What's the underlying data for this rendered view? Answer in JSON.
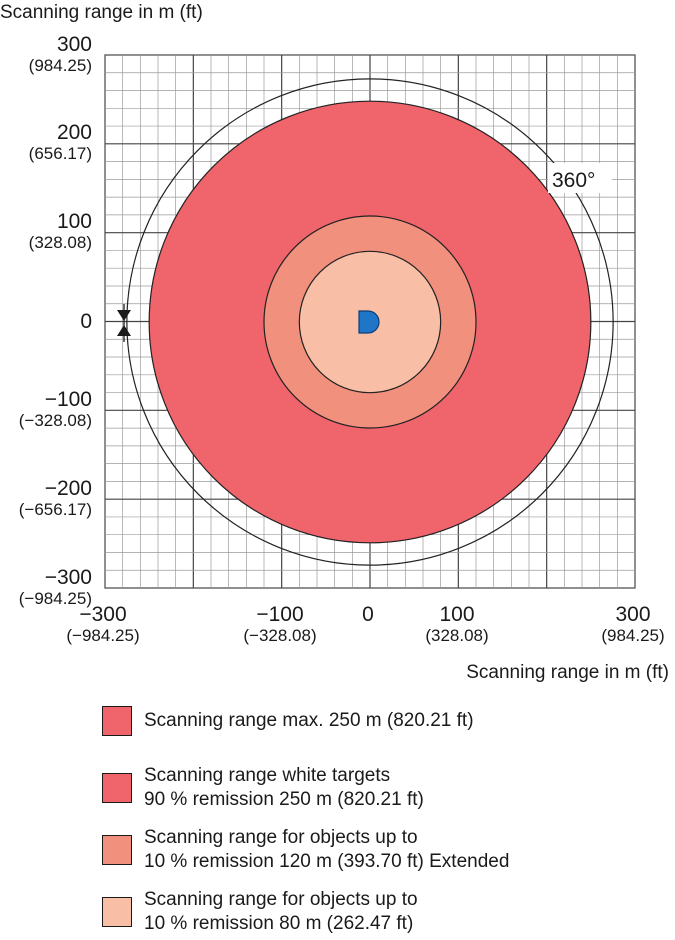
{
  "axes": {
    "y_title": "Scanning range in m (ft)",
    "x_title": "Scanning range in m (ft)",
    "y_ticks": [
      {
        "m": "300",
        "ft": "(984.25)"
      },
      {
        "m": "200",
        "ft": "(656.17)"
      },
      {
        "m": "100",
        "ft": "(328.08)"
      },
      {
        "m": "0",
        "ft": ""
      },
      {
        "m": "−100",
        "ft": "(−328.08)"
      },
      {
        "m": "−200",
        "ft": "(−656.17)"
      },
      {
        "m": "−300",
        "ft": "(−984.25)"
      }
    ],
    "x_ticks": [
      {
        "m": "−300",
        "ft": "(−984.25)"
      },
      {
        "m": "−100",
        "ft": "(−328.08)"
      },
      {
        "m": "0",
        "ft": ""
      },
      {
        "m": "100",
        "ft": "(328.08)"
      },
      {
        "m": "300",
        "ft": "(984.25)"
      }
    ],
    "range": [
      -300,
      300
    ],
    "grid": true
  },
  "angle_label": "360°",
  "colors": {
    "max_range": "#f0646c",
    "white_targets": "#f0646c",
    "extended_10": "#f2907e",
    "range_10": "#f9bfa6",
    "sensor": "#1f75c8",
    "grid_line": "#555555"
  },
  "rings": {
    "max_range_m": 250,
    "ring_120_m": 120,
    "ring_80_m": 80,
    "arc_radius_m": 280
  },
  "legend": [
    {
      "lines": [
        "Scanning range max. 250 m (820.21 ft)"
      ],
      "color": "#f0646c"
    },
    {
      "lines": [
        "Scanning range white targets",
        "90 % remission 250 m (820.21 ft)"
      ],
      "color": "#f0646c"
    },
    {
      "lines": [
        "Scanning range for objects up to",
        "10 % remission 120 m (393.70 ft) Extended"
      ],
      "color": "#f2907e"
    },
    {
      "lines": [
        "Scanning range for objects up to",
        "10 % remission 80 m (262.47 ft)"
      ],
      "color": "#f9bfa6"
    }
  ]
}
